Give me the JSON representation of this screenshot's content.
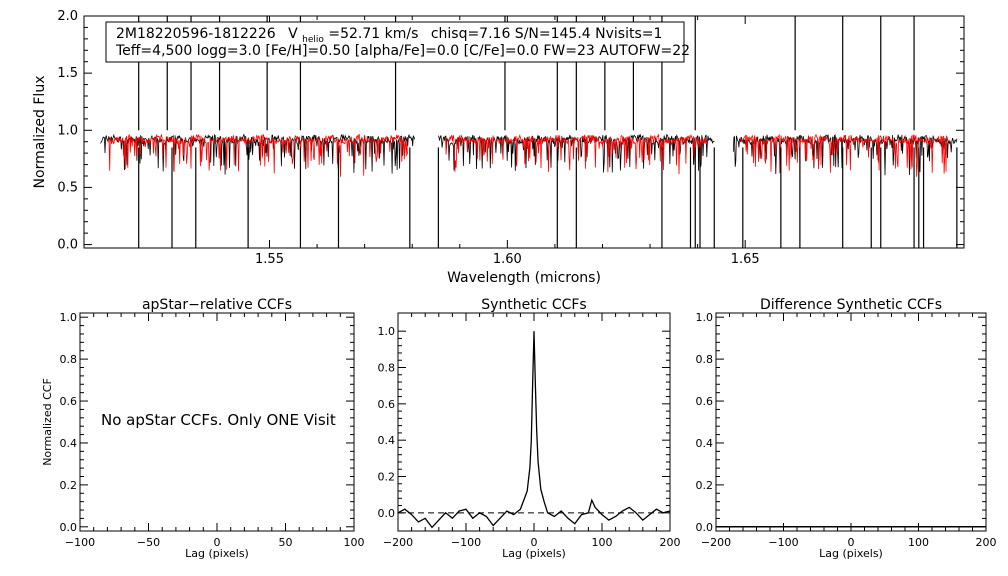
{
  "chart_data": [
    {
      "type": "line",
      "object_id": "2M18220596-1812226",
      "info_line1_velocity_symbol": "V",
      "info_line1_velocity_subscript": "helio",
      "info_line1_velocity_value": "=52.71 km/s",
      "info_line1_rest": "chisq=7.16  S/N=145.4  Nvisits=1",
      "info_line2": "Teff=4,500 logg=3.0 [Fe/H]=0.50 [alpha/Fe]=0.0 [C/Fe]=0.0 FW=23 AUTOFW=22",
      "xlabel": "Wavelength (microns)",
      "ylabel": "Normalized Flux",
      "xlim": [
        1.511,
        1.696
      ],
      "ylim": [
        -0.03,
        2.0
      ],
      "xticks": [
        1.55,
        1.6,
        1.65
      ],
      "xtick_labels": [
        "1.55",
        "1.60",
        "1.65"
      ],
      "yticks": [
        0.0,
        0.5,
        1.0,
        1.5,
        2.0
      ],
      "ytick_labels": [
        "0.0",
        "0.5",
        "1.0",
        "1.5",
        "2.0"
      ],
      "chips": [
        [
          1.5145,
          1.5805
        ],
        [
          1.5855,
          1.6435
        ],
        [
          1.6475,
          1.6945
        ]
      ],
      "series": [
        {
          "color": "#000000",
          "continuum": 0.92
        },
        {
          "color": "#ff0000",
          "continuum": 0.92
        }
      ],
      "spikes_up": [
        1.5225,
        1.5285,
        1.5335,
        1.5395,
        1.5495,
        1.5565,
        1.5765,
        1.5995,
        1.6105,
        1.6145,
        1.6205,
        1.6265,
        1.6325,
        1.6395,
        1.6605,
        1.6705,
        1.6785,
        1.6855
      ],
      "spikes_down": [
        1.5225,
        1.5295,
        1.5345,
        1.5455,
        1.5565,
        1.5645,
        1.5795,
        1.5855,
        1.6105,
        1.6145,
        1.6325,
        1.6385,
        1.6395,
        1.6405,
        1.6435,
        1.6495,
        1.6575,
        1.6615,
        1.6705,
        1.6765,
        1.6785,
        1.6855,
        1.6865,
        1.6875,
        1.6945
      ]
    },
    {
      "type": "line",
      "title": "apStar−relative CCFs",
      "xlabel": "Lag (pixels)",
      "ylabel": "Normalized CCF",
      "xlim": [
        -100,
        100
      ],
      "ylim": [
        -0.02,
        1.02
      ],
      "xticks": [
        -100,
        -50,
        0,
        50,
        100
      ],
      "xtick_labels": [
        "−100",
        "−50",
        "0",
        "50",
        "100"
      ],
      "yticks": [
        0.0,
        0.2,
        0.4,
        0.6,
        0.8,
        1.0
      ],
      "ytick_labels": [
        "0.0",
        "0.2",
        "0.4",
        "0.6",
        "0.8",
        "1.0"
      ],
      "annotation": "No apStar CCFs.  Only ONE Visit",
      "series": []
    },
    {
      "type": "line",
      "title": "Synthetic CCFs",
      "xlabel": "Lag (pixels)",
      "xlim": [
        -200,
        200
      ],
      "ylim": [
        -0.1,
        1.1
      ],
      "xticks": [
        -200,
        -100,
        0,
        100,
        200
      ],
      "xtick_labels": [
        "−200",
        "−100",
        "0",
        "100",
        "200"
      ],
      "yticks": [
        0.0,
        0.2,
        0.4,
        0.6,
        0.8,
        1.0
      ],
      "ytick_labels": [
        "0.0",
        "0.2",
        "0.4",
        "0.6",
        "0.8",
        "1.0"
      ],
      "zero_line": "dashed",
      "series": [
        {
          "color": "#000000",
          "x": [
            -200,
            -190,
            -180,
            -170,
            -160,
            -150,
            -140,
            -130,
            -120,
            -110,
            -100,
            -90,
            -80,
            -70,
            -60,
            -50,
            -40,
            -30,
            -20,
            -15,
            -10,
            -6,
            -4,
            -2,
            0,
            2,
            4,
            6,
            10,
            15,
            20,
            30,
            40,
            50,
            60,
            70,
            80,
            85,
            90,
            100,
            110,
            120,
            130,
            140,
            150,
            160,
            170,
            180,
            190,
            200
          ],
          "y": [
            0.0,
            0.02,
            -0.01,
            -0.05,
            -0.03,
            -0.08,
            -0.04,
            0.0,
            -0.03,
            0.01,
            0.02,
            -0.03,
            0.0,
            -0.02,
            -0.07,
            -0.03,
            0.01,
            -0.01,
            0.02,
            0.07,
            0.12,
            0.25,
            0.4,
            0.7,
            1.0,
            0.7,
            0.45,
            0.28,
            0.13,
            0.06,
            0.0,
            -0.02,
            0.01,
            -0.03,
            -0.06,
            -0.01,
            0.0,
            0.07,
            0.03,
            -0.01,
            -0.04,
            -0.02,
            0.01,
            0.03,
            0.0,
            -0.04,
            -0.01,
            0.02,
            0.0,
            0.01
          ]
        }
      ]
    },
    {
      "type": "line",
      "title": "Difference Synthetic CCFs",
      "xlabel": "Lag (pixels)",
      "xlim": [
        -200,
        200
      ],
      "ylim": [
        -0.02,
        1.02
      ],
      "xticks": [
        -200,
        -100,
        0,
        100,
        200
      ],
      "xtick_labels": [
        "−200",
        "−100",
        "0",
        "100",
        "200"
      ],
      "yticks": [
        0.0,
        0.2,
        0.4,
        0.6,
        0.8,
        1.0
      ],
      "ytick_labels": [
        "0.0",
        "0.2",
        "0.4",
        "0.6",
        "0.8",
        "1.0"
      ],
      "series": [
        {
          "color": "#000000",
          "x": [
            -200,
            200
          ],
          "y": [
            0.0,
            0.0
          ]
        }
      ]
    }
  ]
}
